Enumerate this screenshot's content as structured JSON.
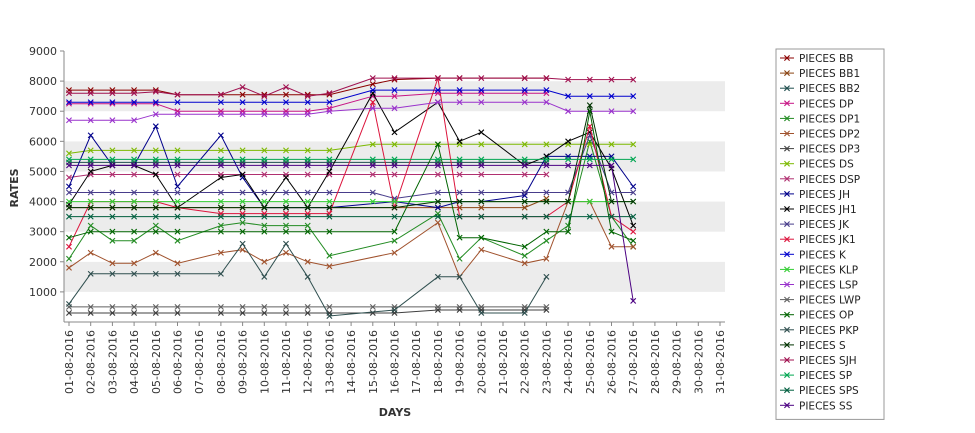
{
  "chart_data": {
    "type": "line",
    "title": "",
    "xlabel": "DAYS",
    "ylabel": "RATES",
    "ylim": [
      0,
      9000
    ],
    "y_ticks": [
      1000,
      2000,
      3000,
      4000,
      5000,
      6000,
      7000,
      8000,
      9000
    ],
    "grid": "alternating horizontal bands",
    "legend_position": "right",
    "categories": [
      "01-08-2016",
      "02-08-2016",
      "03-08-2016",
      "04-08-2016",
      "05-08-2016",
      "06-08-2016",
      "07-08-2016",
      "08-08-2016",
      "09-08-2016",
      "10-08-2016",
      "11-08-2016",
      "12-08-2016",
      "13-08-2016",
      "14-08-2016",
      "15-08-2016",
      "16-08-2016",
      "17-08-2016",
      "18-08-2016",
      "19-08-2016",
      "20-08-2016",
      "21-08-2016",
      "22-08-2016",
      "23-08-2016",
      "24-08-2016",
      "25-08-2016",
      "26-08-2016",
      "27-08-2016",
      "28-08-2016",
      "29-08-2016",
      "30-08-2016",
      "31-08-2016"
    ],
    "series": [
      {
        "name": "PIECES BB",
        "color": "#8b0000",
        "values": [
          7700,
          7700,
          7700,
          7700,
          7700,
          7550,
          null,
          7550,
          7550,
          7550,
          7550,
          7550,
          7550,
          null,
          7900,
          8050,
          null,
          8100,
          8100,
          null,
          null,
          8100,
          8100,
          null,
          null,
          null,
          null,
          null,
          null,
          null,
          null
        ]
      },
      {
        "name": "PIECES BB1",
        "color": "#8b4513",
        "values": [
          3800,
          3800,
          3800,
          3800,
          3800,
          3800,
          null,
          3800,
          3800,
          3800,
          3800,
          3800,
          3800,
          null,
          null,
          null,
          null,
          3800,
          3800,
          3800,
          null,
          3800,
          4100,
          null,
          null,
          null,
          null,
          null,
          null,
          null,
          null
        ]
      },
      {
        "name": "PIECES BB2",
        "color": "#1f4e4e",
        "values": [
          5300,
          5300,
          5300,
          5300,
          5300,
          5300,
          null,
          5300,
          5300,
          5300,
          5300,
          5300,
          5300,
          null,
          5300,
          5300,
          null,
          5300,
          5300,
          5300,
          null,
          5300,
          5300,
          null,
          null,
          null,
          null,
          null,
          null,
          null,
          null
        ]
      },
      {
        "name": "PIECES DP",
        "color": "#c71585",
        "values": [
          7250,
          7250,
          7250,
          7250,
          7250,
          7000,
          null,
          7000,
          7000,
          7000,
          7000,
          7000,
          7100,
          null,
          7500,
          7500,
          null,
          7600,
          7600,
          7600,
          null,
          7600,
          7600,
          null,
          null,
          null,
          null,
          null,
          null,
          null,
          null
        ]
      },
      {
        "name": "PIECES DP1",
        "color": "#228b22",
        "values": [
          2100,
          3200,
          2700,
          2700,
          3200,
          2700,
          null,
          3200,
          3300,
          3200,
          3200,
          3200,
          2200,
          null,
          null,
          2700,
          null,
          3600,
          2100,
          2800,
          null,
          2200,
          2700,
          3200,
          6000,
          3500,
          2500,
          null,
          null,
          null,
          null
        ]
      },
      {
        "name": "PIECES DP2",
        "color": "#a0522d",
        "values": [
          1800,
          2300,
          1950,
          1950,
          2300,
          1950,
          null,
          2300,
          2400,
          2000,
          2300,
          2000,
          1850,
          null,
          null,
          2300,
          null,
          3300,
          1500,
          2400,
          null,
          1950,
          2100,
          4000,
          4000,
          2500,
          2500,
          null,
          null,
          null,
          null
        ]
      },
      {
        "name": "PIECES DP3",
        "color": "#404040",
        "values": [
          300,
          300,
          300,
          300,
          300,
          300,
          null,
          300,
          300,
          300,
          300,
          300,
          300,
          null,
          300,
          300,
          null,
          400,
          400,
          400,
          null,
          400,
          400,
          null,
          null,
          null,
          null,
          null,
          null,
          null,
          null
        ]
      },
      {
        "name": "PIECES DS",
        "color": "#7cb900",
        "values": [
          5600,
          5700,
          5700,
          5700,
          5700,
          5700,
          null,
          5700,
          5700,
          5700,
          5700,
          5700,
          5700,
          null,
          5900,
          5900,
          null,
          5900,
          5900,
          5900,
          null,
          5900,
          5900,
          5900,
          5900,
          5900,
          5900,
          null,
          null,
          null,
          null
        ]
      },
      {
        "name": "PIECES DSP",
        "color": "#b03070",
        "values": [
          4800,
          4900,
          4900,
          4900,
          4900,
          4900,
          null,
          4900,
          4900,
          4900,
          4900,
          4900,
          4900,
          null,
          4900,
          4900,
          null,
          4900,
          4900,
          4900,
          null,
          4900,
          4900,
          null,
          null,
          null,
          null,
          null,
          null,
          null,
          null
        ]
      },
      {
        "name": "PIECES JH",
        "color": "#00008b",
        "values": [
          4500,
          6200,
          5200,
          5200,
          6500,
          4500,
          null,
          6200,
          4800,
          3800,
          3800,
          3800,
          3800,
          null,
          null,
          4000,
          null,
          3800,
          4000,
          4000,
          null,
          4200,
          5500,
          5500,
          5500,
          5500,
          4500,
          null,
          null,
          null,
          null
        ]
      },
      {
        "name": "PIECES JH1",
        "color": "#000000",
        "values": [
          3900,
          5000,
          5200,
          5200,
          4900,
          3800,
          null,
          4800,
          4900,
          3800,
          4800,
          3800,
          5000,
          null,
          7600,
          6300,
          null,
          7300,
          6000,
          6300,
          null,
          5200,
          5500,
          6000,
          6300,
          5100,
          3200,
          null,
          null,
          null,
          null
        ]
      },
      {
        "name": "PIECES JK",
        "color": "#483d8b",
        "values": [
          4300,
          4300,
          4300,
          4300,
          4300,
          4300,
          null,
          4300,
          4300,
          4300,
          4300,
          4300,
          4300,
          null,
          4300,
          4100,
          null,
          4300,
          4300,
          4300,
          null,
          4300,
          4300,
          4300,
          6200,
          4300,
          4300,
          null,
          null,
          null,
          null
        ]
      },
      {
        "name": "PIECES JK1",
        "color": "#dc143c",
        "values": [
          2500,
          4000,
          4000,
          4000,
          4000,
          3800,
          null,
          3600,
          3600,
          3600,
          3600,
          3600,
          3600,
          null,
          7300,
          3800,
          null,
          8100,
          3500,
          3500,
          null,
          3500,
          3500,
          4000,
          6500,
          3500,
          3000,
          null,
          null,
          null,
          null
        ]
      },
      {
        "name": "PIECES K",
        "color": "#0000cd",
        "values": [
          7300,
          7300,
          7300,
          7300,
          7300,
          7300,
          null,
          7300,
          7300,
          7300,
          7300,
          7300,
          7300,
          null,
          7700,
          7700,
          null,
          7700,
          7700,
          7700,
          null,
          7700,
          7700,
          7500,
          7500,
          7500,
          7500,
          null,
          null,
          null,
          null
        ]
      },
      {
        "name": "PIECES KLP",
        "color": "#32cd32",
        "values": [
          4000,
          4000,
          4000,
          4000,
          4000,
          4000,
          null,
          4000,
          4000,
          4000,
          4000,
          4000,
          4000,
          null,
          4000,
          4000,
          null,
          4000,
          4000,
          4000,
          null,
          4000,
          4000,
          4000,
          4000,
          4000,
          4000,
          null,
          null,
          null,
          null
        ]
      },
      {
        "name": "PIECES LSP",
        "color": "#9932cc",
        "values": [
          6700,
          6700,
          6700,
          6700,
          6900,
          6900,
          null,
          6900,
          6900,
          6900,
          6900,
          6900,
          7000,
          null,
          7100,
          7100,
          null,
          7300,
          7300,
          7300,
          null,
          7300,
          7300,
          7000,
          7000,
          7000,
          7000,
          null,
          null,
          null,
          null
        ]
      },
      {
        "name": "PIECES LWP",
        "color": "#606060",
        "values": [
          500,
          500,
          500,
          500,
          500,
          500,
          null,
          500,
          500,
          500,
          500,
          500,
          500,
          null,
          500,
          500,
          null,
          500,
          500,
          500,
          null,
          500,
          500,
          null,
          null,
          null,
          null,
          null,
          null,
          null,
          null
        ]
      },
      {
        "name": "PIECES OP",
        "color": "#006400",
        "values": [
          2800,
          3000,
          3000,
          3000,
          3000,
          3000,
          null,
          3000,
          3000,
          3000,
          3000,
          3000,
          3000,
          null,
          null,
          3000,
          null,
          5900,
          2800,
          2800,
          null,
          2500,
          3000,
          3000,
          7000,
          3000,
          2700,
          null,
          null,
          null,
          null
        ]
      },
      {
        "name": "PIECES PKP",
        "color": "#2f4f4f",
        "values": [
          600,
          1600,
          1600,
          1600,
          1600,
          1600,
          null,
          1600,
          2600,
          1500,
          2600,
          1500,
          200,
          null,
          null,
          400,
          null,
          1500,
          1500,
          300,
          null,
          300,
          1500,
          null,
          null,
          null,
          null,
          null,
          null,
          null,
          null
        ]
      },
      {
        "name": "PIECES S",
        "color": "#003300",
        "values": [
          3800,
          3800,
          3800,
          3800,
          3800,
          3800,
          null,
          3800,
          3800,
          3800,
          3800,
          3800,
          3800,
          null,
          null,
          3800,
          null,
          4000,
          4000,
          4000,
          null,
          4000,
          4000,
          4000,
          7200,
          4000,
          4000,
          null,
          null,
          null,
          null
        ]
      },
      {
        "name": "PIECES SJH",
        "color": "#a0104f",
        "values": [
          7600,
          7600,
          7600,
          7600,
          7650,
          7550,
          null,
          7550,
          7800,
          7500,
          7800,
          7500,
          7600,
          null,
          8100,
          8100,
          null,
          8100,
          8100,
          8100,
          null,
          8100,
          8100,
          8050,
          8050,
          8050,
          8050,
          null,
          null,
          null,
          null
        ]
      },
      {
        "name": "PIECES SP",
        "color": "#00a651",
        "values": [
          5400,
          5400,
          5400,
          5400,
          5400,
          5400,
          null,
          5400,
          5400,
          5400,
          5400,
          5400,
          5400,
          null,
          5400,
          5400,
          null,
          5400,
          5400,
          5400,
          null,
          5400,
          5400,
          5400,
          5400,
          5400,
          5400,
          null,
          null,
          null,
          null
        ]
      },
      {
        "name": "PIECES SPS",
        "color": "#005f3f",
        "values": [
          3500,
          3500,
          3500,
          3500,
          3500,
          3500,
          null,
          3500,
          3500,
          3500,
          3500,
          3500,
          3500,
          null,
          null,
          3500,
          null,
          3500,
          3500,
          3500,
          null,
          3500,
          3500,
          3500,
          3500,
          3500,
          3500,
          null,
          null,
          null,
          null
        ]
      },
      {
        "name": "PIECES SS",
        "color": "#4b0082",
        "values": [
          5200,
          5200,
          5200,
          5200,
          5200,
          5200,
          null,
          5200,
          5200,
          5200,
          5200,
          5200,
          5200,
          null,
          5200,
          5200,
          null,
          5200,
          5200,
          5200,
          null,
          5200,
          5200,
          5200,
          5200,
          5200,
          700,
          null,
          null,
          null,
          null
        ]
      }
    ]
  }
}
